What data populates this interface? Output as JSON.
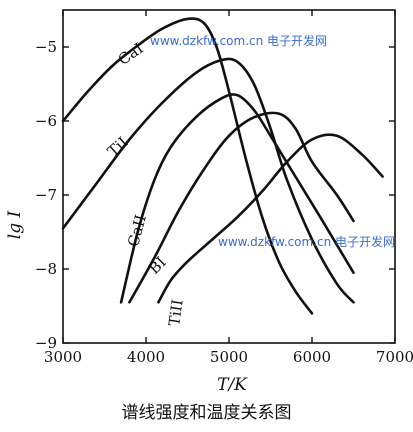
{
  "caption": "谱线强度和温度关系图",
  "watermark_top": "www.dzkfw.com.cn 电子开发网",
  "watermark_bottom": "www.dzkfw.com.cn 电子开发网",
  "chart_data": {
    "type": "line",
    "title": "",
    "xlabel": "T/K",
    "ylabel": "lg I",
    "xlim": [
      3000,
      7000
    ],
    "ylim": [
      -9,
      -4.5
    ],
    "xticks": [
      3000,
      4000,
      5000,
      6000,
      7000
    ],
    "yticks": [
      -5,
      -6,
      -7,
      -8,
      -9
    ],
    "grid": false,
    "series": [
      {
        "name": "CaI",
        "label_pos": [
          3850,
          -5.15
        ],
        "label_rot": -35,
        "x": [
          3000,
          3300,
          3600,
          3900,
          4200,
          4500,
          4700,
          4850,
          5000,
          5200,
          5400,
          5600,
          5800,
          6000
        ],
        "y": [
          -6.0,
          -5.6,
          -5.25,
          -4.98,
          -4.75,
          -4.62,
          -4.68,
          -5.0,
          -5.6,
          -6.5,
          -7.3,
          -7.9,
          -8.3,
          -8.6
        ]
      },
      {
        "name": "TiI",
        "label_pos": [
          3700,
          -6.4
        ],
        "label_rot": -42,
        "x": [
          3000,
          3400,
          3800,
          4200,
          4600,
          4900,
          5100,
          5300,
          5500,
          5700,
          6000,
          6300,
          6500
        ],
        "y": [
          -7.45,
          -6.85,
          -6.25,
          -5.75,
          -5.35,
          -5.18,
          -5.2,
          -5.5,
          -6.1,
          -6.8,
          -7.6,
          -8.2,
          -8.45
        ]
      },
      {
        "name": "CaII",
        "label_pos": [
          3950,
          -7.5
        ],
        "label_rot": -75,
        "x": [
          3700,
          3900,
          4100,
          4300,
          4600,
          4900,
          5100,
          5300,
          5500,
          5800,
          6100,
          6500
        ],
        "y": [
          -8.45,
          -7.5,
          -6.8,
          -6.35,
          -5.95,
          -5.7,
          -5.65,
          -5.85,
          -6.2,
          -6.75,
          -7.3,
          -8.05
        ]
      },
      {
        "name": "BI",
        "label_pos": [
          4180,
          -8.0
        ],
        "label_rot": -45,
        "x": [
          3800,
          4100,
          4400,
          4700,
          5000,
          5300,
          5600,
          5800,
          6000,
          6300,
          6500
        ],
        "y": [
          -8.45,
          -7.85,
          -7.2,
          -6.65,
          -6.2,
          -5.95,
          -5.9,
          -6.1,
          -6.55,
          -7.0,
          -7.35
        ]
      },
      {
        "name": "TiII",
        "label_pos": [
          4420,
          -8.6
        ],
        "label_rot": -82,
        "x": [
          4150,
          4300,
          4500,
          4800,
          5100,
          5400,
          5700,
          6000,
          6300,
          6600,
          6850
        ],
        "y": [
          -8.45,
          -8.15,
          -7.9,
          -7.6,
          -7.3,
          -6.95,
          -6.55,
          -6.25,
          -6.2,
          -6.45,
          -6.75
        ]
      }
    ]
  }
}
